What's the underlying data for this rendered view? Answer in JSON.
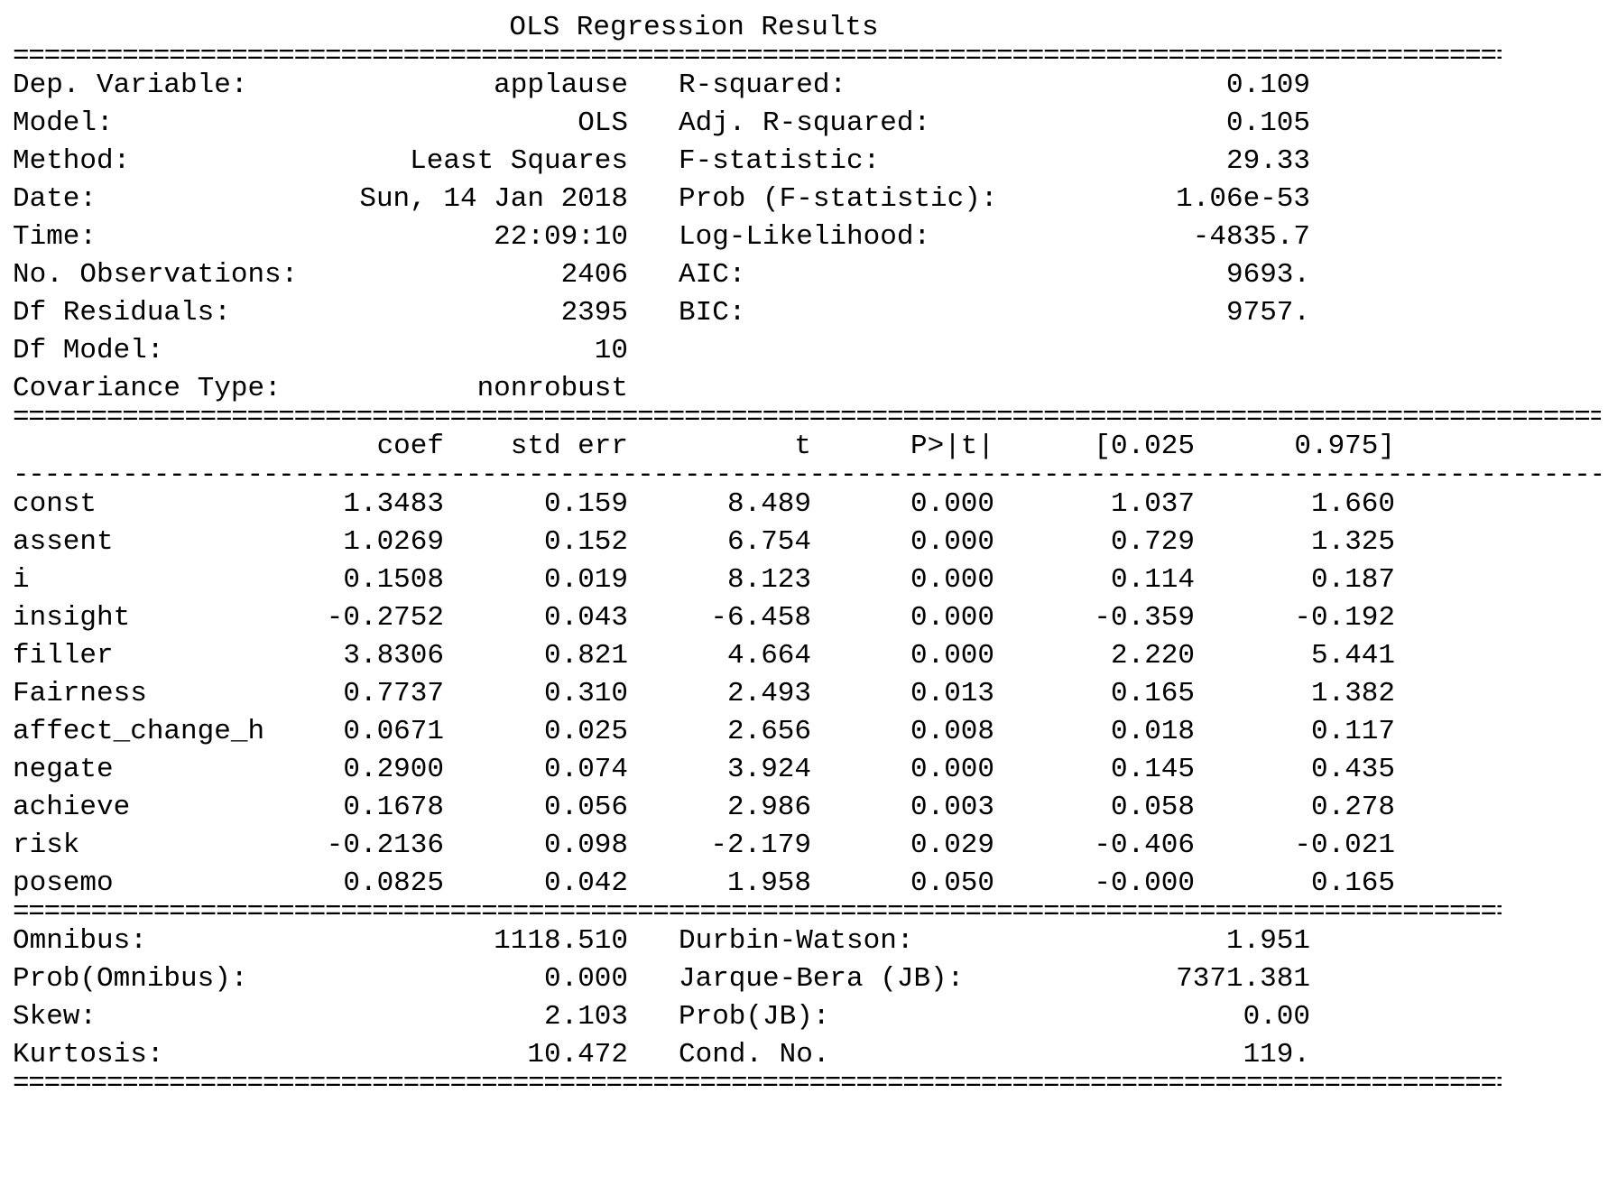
{
  "title": "OLS Regression Results",
  "rule_double": "==================================================================================================================",
  "rule_single": "------------------------------------------------------------------------------------------------------------------",
  "top_left": [
    {
      "label": "Dep. Variable:",
      "value": "applause"
    },
    {
      "label": "Model:",
      "value": "OLS"
    },
    {
      "label": "Method:",
      "value": "Least Squares"
    },
    {
      "label": "Date:",
      "value": "Sun, 14 Jan 2018"
    },
    {
      "label": "Time:",
      "value": "22:09:10"
    },
    {
      "label": "No. Observations:",
      "value": "2406"
    },
    {
      "label": "Df Residuals:",
      "value": "2395"
    },
    {
      "label": "Df Model:",
      "value": "10"
    },
    {
      "label": "Covariance Type:",
      "value": "nonrobust"
    }
  ],
  "top_right": [
    {
      "label": "R-squared:",
      "value": "0.109"
    },
    {
      "label": "Adj. R-squared:",
      "value": "0.105"
    },
    {
      "label": "F-statistic:",
      "value": "29.33"
    },
    {
      "label": "Prob (F-statistic):",
      "value": "1.06e-53"
    },
    {
      "label": "Log-Likelihood:",
      "value": "-4835.7"
    },
    {
      "label": "AIC:",
      "value": "9693."
    },
    {
      "label": "BIC:",
      "value": "9757."
    }
  ],
  "coef_headers": [
    "coef",
    "std err",
    "t",
    "P>|t|",
    "[0.025",
    "0.975]"
  ],
  "coef_rows": [
    {
      "name": "const",
      "values": [
        "1.3483",
        "0.159",
        "8.489",
        "0.000",
        "1.037",
        "1.660"
      ]
    },
    {
      "name": "assent",
      "values": [
        "1.0269",
        "0.152",
        "6.754",
        "0.000",
        "0.729",
        "1.325"
      ]
    },
    {
      "name": "i",
      "values": [
        "0.1508",
        "0.019",
        "8.123",
        "0.000",
        "0.114",
        "0.187"
      ]
    },
    {
      "name": "insight",
      "values": [
        "-0.2752",
        "0.043",
        "-6.458",
        "0.000",
        "-0.359",
        "-0.192"
      ]
    },
    {
      "name": "filler",
      "values": [
        "3.8306",
        "0.821",
        "4.664",
        "0.000",
        "2.220",
        "5.441"
      ]
    },
    {
      "name": "Fairness",
      "values": [
        "0.7737",
        "0.310",
        "2.493",
        "0.013",
        "0.165",
        "1.382"
      ]
    },
    {
      "name": "affect_change_h",
      "values": [
        "0.0671",
        "0.025",
        "2.656",
        "0.008",
        "0.018",
        "0.117"
      ]
    },
    {
      "name": "negate",
      "values": [
        "0.2900",
        "0.074",
        "3.924",
        "0.000",
        "0.145",
        "0.435"
      ]
    },
    {
      "name": "achieve",
      "values": [
        "0.1678",
        "0.056",
        "2.986",
        "0.003",
        "0.058",
        "0.278"
      ]
    },
    {
      "name": "risk",
      "values": [
        "-0.2136",
        "0.098",
        "-2.179",
        "0.029",
        "-0.406",
        "-0.021"
      ]
    },
    {
      "name": "posemo",
      "values": [
        "0.0825",
        "0.042",
        "1.958",
        "0.050",
        "-0.000",
        "0.165"
      ]
    }
  ],
  "bottom_left": [
    {
      "label": "Omnibus:",
      "value": "1118.510"
    },
    {
      "label": "Prob(Omnibus):",
      "value": "0.000"
    },
    {
      "label": "Skew:",
      "value": "2.103"
    },
    {
      "label": "Kurtosis:",
      "value": "10.472"
    }
  ],
  "bottom_right": [
    {
      "label": "Durbin-Watson:",
      "value": "1.951"
    },
    {
      "label": "Jarque-Bera (JB):",
      "value": "7371.381"
    },
    {
      "label": "Prob(JB):",
      "value": "0.00"
    },
    {
      "label": "Cond. No.",
      "value": "119."
    }
  ]
}
